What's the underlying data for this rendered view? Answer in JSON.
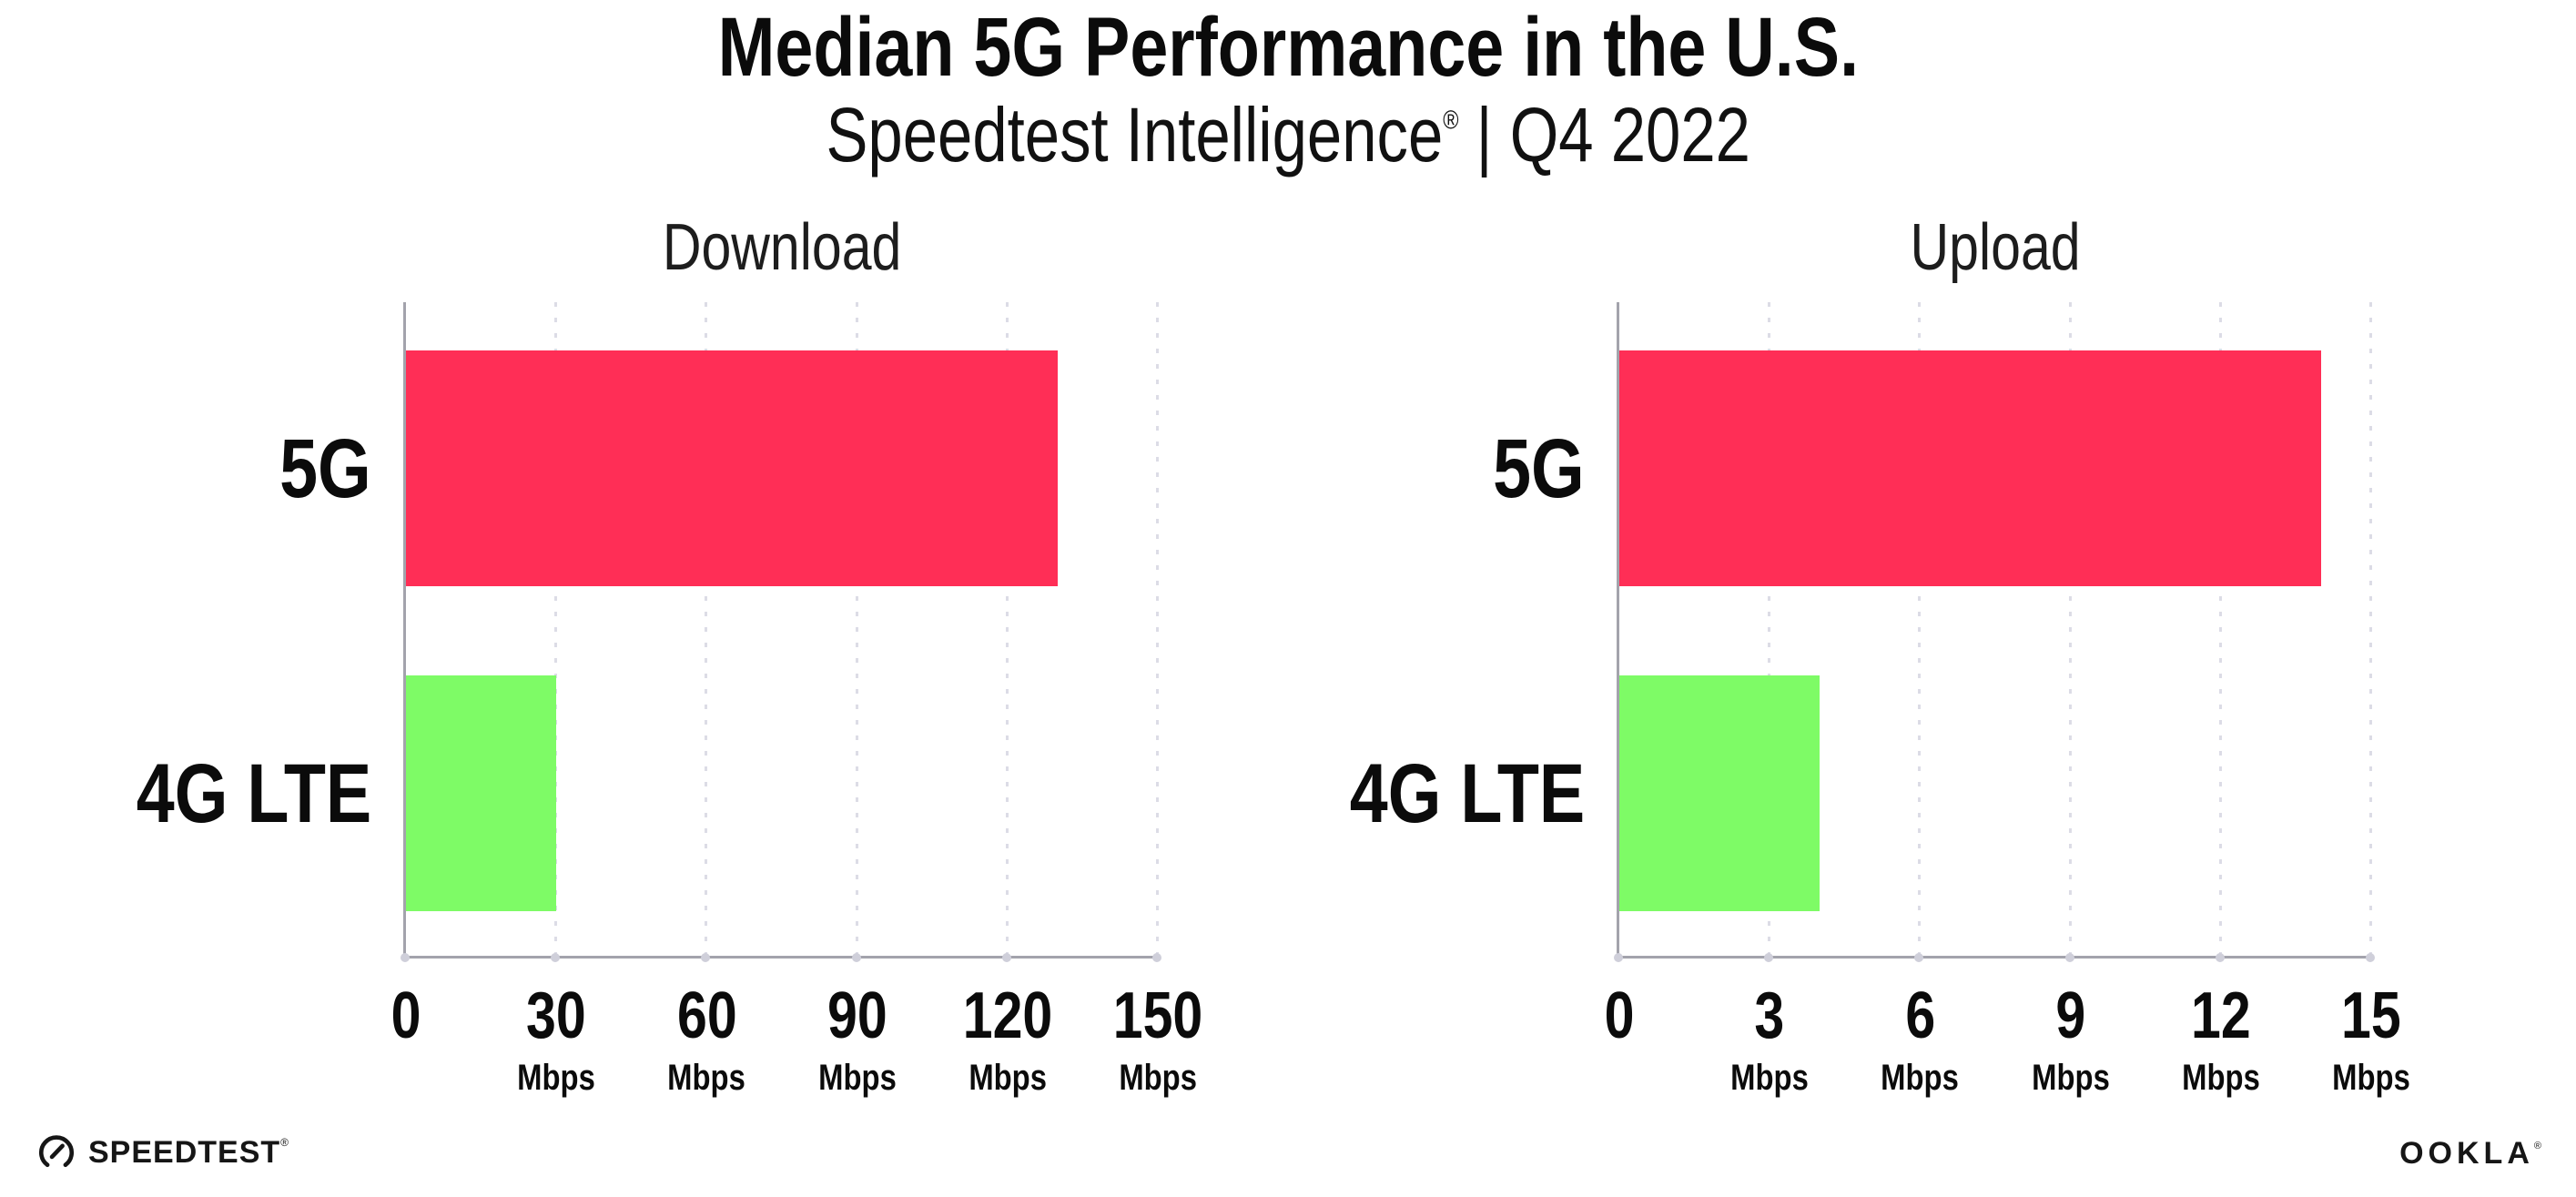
{
  "header": {
    "title": "Median 5G Performance in the U.S.",
    "subtitle_product": "Speedtest Intelligence",
    "subtitle_mark": "®",
    "subtitle_rest": " | Q4 2022"
  },
  "chart_data": [
    {
      "type": "bar",
      "orientation": "horizontal",
      "title": "Download",
      "categories": [
        "5G",
        "4G LTE"
      ],
      "values": [
        130,
        30
      ],
      "value_unit": "Mbps",
      "bar_colors": [
        "#FF2E56",
        "#7EFB66"
      ],
      "xlim": [
        0,
        150
      ],
      "xticks": [
        0,
        30,
        60,
        90,
        120,
        150
      ],
      "xtick_unit": "Mbps",
      "grid": "vertical-dotted",
      "legend": "none"
    },
    {
      "type": "bar",
      "orientation": "horizontal",
      "title": "Upload",
      "categories": [
        "5G",
        "4G LTE"
      ],
      "values": [
        14,
        4
      ],
      "value_unit": "Mbps",
      "bar_colors": [
        "#FF2E56",
        "#7EFB66"
      ],
      "xlim": [
        0,
        15
      ],
      "xticks": [
        0,
        3,
        6,
        9,
        12,
        15
      ],
      "xtick_unit": "Mbps",
      "grid": "vertical-dotted",
      "legend": "none"
    }
  ],
  "colors": {
    "bar_5g": "#FF2E56",
    "bar_4g_lte": "#7EFB66",
    "axis": "#A3A3AC",
    "gridline": "#DCDCE6",
    "text": "#0B0B0B"
  },
  "footer": {
    "speedtest_label": "SPEEDTEST",
    "speedtest_mark": "®",
    "ookla_label": "OOKLA",
    "ookla_mark": "®"
  }
}
